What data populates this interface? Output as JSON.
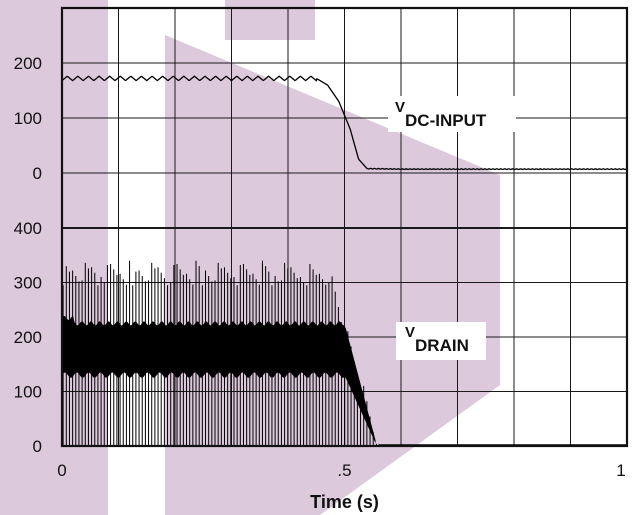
{
  "colors": {
    "watermark": "#dcc9dc",
    "trace": "#000000",
    "grid": "#1a1a1a"
  },
  "chart_data": {
    "type": "line",
    "xlabel": "Time (s)",
    "x_ticks": [
      "0",
      ".5",
      "1"
    ],
    "xlim": [
      0,
      1
    ],
    "grid": true,
    "panels": [
      {
        "name": "upper",
        "y_ticks": [
          "200",
          "100",
          "0"
        ],
        "ylim": [
          0,
          300
        ],
        "series": [
          {
            "name": "V DC-INPUT",
            "label_main": "V",
            "label_sub": "DC-INPUT",
            "ripple_mean": 172,
            "ripple_amplitude": 8,
            "ripple_cycles": 24,
            "points": [
              [
                0,
                172
              ],
              [
                0.45,
                172
              ],
              [
                0.47,
                160
              ],
              [
                0.49,
                130
              ],
              [
                0.51,
                80
              ],
              [
                0.525,
                25
              ],
              [
                0.54,
                8
              ],
              [
                0.6,
                7
              ],
              [
                0.7,
                7
              ],
              [
                0.8,
                7
              ],
              [
                1.0,
                7
              ]
            ]
          }
        ]
      },
      {
        "name": "lower",
        "y_ticks": [
          "400",
          "300",
          "200",
          "100",
          "0"
        ],
        "ylim": [
          0,
          500
        ],
        "series": [
          {
            "name": "V DRAIN",
            "label_main": "V",
            "label_sub": "DRAIN",
            "pulse_count": 100,
            "spike_peak": 340,
            "band_high": 225,
            "band_low": 130,
            "points": [
              [
                0,
                0
              ],
              [
                0.46,
                340
              ],
              [
                0.5,
                280
              ],
              [
                0.53,
                180
              ],
              [
                0.55,
                70
              ],
              [
                0.57,
                20
              ],
              [
                0.58,
                0
              ],
              [
                1.0,
                0
              ]
            ]
          }
        ]
      }
    ]
  }
}
